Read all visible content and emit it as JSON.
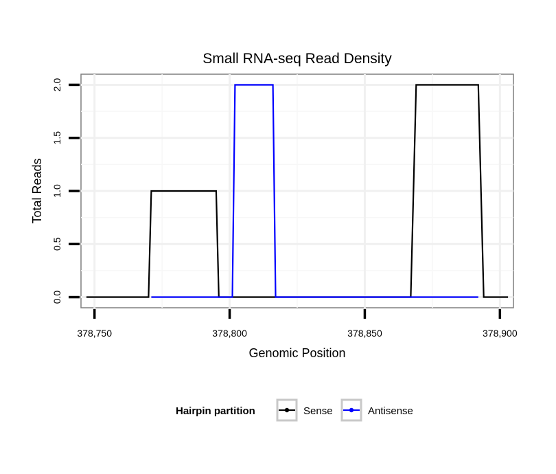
{
  "chart_data": {
    "type": "line",
    "title": "Small RNA-seq Read Density",
    "xlabel": "Genomic Position",
    "ylabel": "Total Reads",
    "xlim": [
      378745,
      378905
    ],
    "ylim": [
      -0.1,
      2.1
    ],
    "x_ticks": [
      378750,
      378800,
      378850,
      378900
    ],
    "x_tick_labels": [
      "378,750",
      "378,800",
      "378,850",
      "378,900"
    ],
    "y_ticks": [
      0.0,
      0.5,
      1.0,
      1.5,
      2.0
    ],
    "y_tick_labels": [
      "0.0",
      "0.5",
      "1.0",
      "1.5",
      "2.0"
    ],
    "grid": true,
    "legend": {
      "title": "Hairpin partition",
      "position": "bottom"
    },
    "series": [
      {
        "name": "Sense",
        "color": "#000000",
        "x": [
          378747,
          378770,
          378771,
          378795,
          378796,
          378867,
          378869,
          378892,
          378894,
          378903
        ],
        "y": [
          0,
          0,
          1,
          1,
          0,
          0,
          2,
          2,
          0,
          0
        ]
      },
      {
        "name": "Antisense",
        "color": "#0000ff",
        "x": [
          378771,
          378801,
          378802,
          378816,
          378817,
          378892
        ],
        "y": [
          0,
          0,
          2,
          2,
          0,
          0
        ]
      }
    ]
  }
}
